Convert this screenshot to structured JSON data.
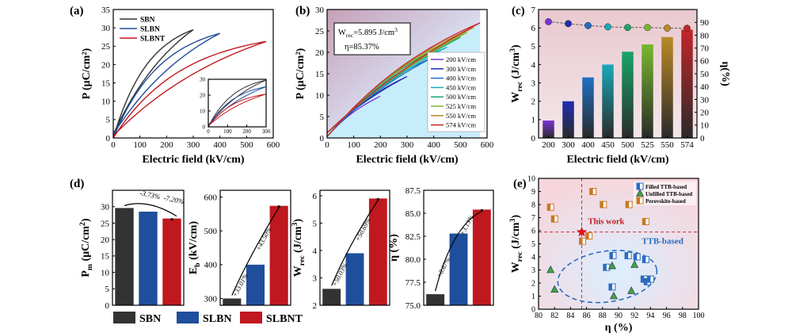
{
  "figure": {
    "legend_bottom": [
      {
        "name": "SBN",
        "color": "#333333"
      },
      {
        "name": "SLBN",
        "color": "#1f4e9c"
      },
      {
        "name": "SLBNT",
        "color": "#c0181f"
      }
    ]
  },
  "chart_data": [
    {
      "panel": "(a)",
      "type": "line",
      "xlabel": "Electric field (kV/cm)",
      "ylabel": "P (μC/cm²)",
      "xlim": [
        0,
        600
      ],
      "ylim": [
        0,
        35
      ],
      "xticks": [
        0,
        100,
        200,
        300,
        400,
        500,
        600
      ],
      "yticks": [
        0,
        5,
        10,
        15,
        20,
        25,
        30,
        35
      ],
      "series": [
        {
          "name": "SBN",
          "color": "#333333",
          "emax": 300,
          "pmax": 29.5,
          "pr": 1.0
        },
        {
          "name": "SLBN",
          "color": "#1f4e9c",
          "emax": 400,
          "pmax": 28.5,
          "pr": 1.0
        },
        {
          "name": "SLBNT",
          "color": "#c0181f",
          "emax": 574,
          "pmax": 26.3,
          "pr": 0.6
        }
      ],
      "inset": {
        "xlim": [
          0,
          300
        ],
        "ylim": [
          0,
          30
        ],
        "xticks": [
          0,
          100,
          200,
          300
        ],
        "yticks": [
          0,
          10,
          20,
          30
        ]
      }
    },
    {
      "panel": "(b)",
      "type": "line",
      "xlabel": "Electric field (kV/cm)",
      "ylabel": "P (μC/cm²)",
      "xlim": [
        0,
        600
      ],
      "ylim": [
        0,
        30
      ],
      "xticks": [
        0,
        100,
        200,
        300,
        400,
        500,
        600
      ],
      "yticks": [
        0,
        5,
        10,
        15,
        20,
        25,
        30
      ],
      "annotation": {
        "wrec": "W",
        "wrec_sub": "rec",
        "wrec_value": "=5.895 J/cm",
        "wrec_sup": "3",
        "eta": "η=85.37%"
      },
      "series": [
        {
          "name": "200 kV/cm",
          "color": "#7b35d6",
          "emax": 200
        },
        {
          "name": "300 kV/cm",
          "color": "#1e2fb0",
          "emax": 300
        },
        {
          "name": "400 kV/cm",
          "color": "#1f6fc2",
          "emax": 400
        },
        {
          "name": "450 kV/cm",
          "color": "#1aa8b8",
          "emax": 450
        },
        {
          "name": "500 kV/cm",
          "color": "#1aa56a",
          "emax": 500
        },
        {
          "name": "525 kV/cm",
          "color": "#78b82c",
          "emax": 525
        },
        {
          "name": "550 kV/cm",
          "color": "#b98a24",
          "emax": 550
        },
        {
          "name": "574 kV/cm",
          "color": "#c2262a",
          "emax": 574
        }
      ]
    },
    {
      "panel": "(c)",
      "type": "bar",
      "xlabel": "Electric field (kV/cm)",
      "ylabel": "W",
      "ylabel_sub": "rec",
      "ylabel_rest": " (J/cm",
      "ylabel_sup": "3",
      "ylabel_close": ")",
      "ylabel_right": "η(%)",
      "categories": [
        "200",
        "300",
        "400",
        "450",
        "500",
        "525",
        "550",
        "574"
      ],
      "values": [
        0.95,
        2.0,
        3.3,
        4.0,
        4.7,
        5.1,
        5.5,
        5.9
      ],
      "eta": [
        90.5,
        89.0,
        87.5,
        86.5,
        86.0,
        86.0,
        85.5,
        85.4
      ],
      "colors": [
        "#7b35d6",
        "#1e2fb0",
        "#1f6fc2",
        "#1aa8b8",
        "#1aa56a",
        "#78b82c",
        "#b98a24",
        "#c2262a"
      ],
      "ylim": [
        0,
        7
      ],
      "ylim_right": [
        0,
        100
      ],
      "yticks": [
        0,
        1,
        2,
        3,
        4,
        5,
        6,
        7
      ],
      "yticks_right": [
        0,
        10,
        20,
        30,
        40,
        50,
        60,
        70,
        80,
        90
      ]
    },
    {
      "panel": "(d)",
      "type": "bar",
      "categories": [
        "SBN",
        "SLBN",
        "SLBNT"
      ],
      "colors": [
        "#333333",
        "#1f4e9c",
        "#c0181f"
      ],
      "subplots": [
        {
          "ylabel": "P",
          "ylabel_sub": "m",
          "ylabel_rest": " (μC/cm",
          "ylabel_sup": "2",
          "ylabel_close": ")",
          "values": [
            29.6,
            28.5,
            26.4
          ],
          "ylim": [
            0,
            35
          ],
          "yticks": [
            0,
            5,
            10,
            15,
            20,
            25,
            30
          ],
          "changes": [
            "-3.73%",
            "-7.20%"
          ]
        },
        {
          "ylabel": "E",
          "ylabel_sub": "b",
          "ylabel_rest": " (kV/cm)",
          "ylabel_sup": "",
          "ylabel_close": "",
          "values": [
            300,
            400,
            574
          ],
          "ylim": [
            280,
            620
          ],
          "yticks": [
            300,
            400,
            500,
            600
          ],
          "changes": [
            "+33.01%",
            "+43.50%"
          ]
        },
        {
          "ylabel": "W",
          "ylabel_sub": "rec",
          "ylabel_rest": " (J/cm",
          "ylabel_sup": "3",
          "ylabel_close": ")",
          "values": [
            2.6,
            3.9,
            5.9
          ],
          "ylim": [
            2,
            6.2
          ],
          "yticks": [
            2,
            3,
            4,
            5,
            6
          ],
          "changes": [
            "+50.03%",
            "+50.69%"
          ]
        },
        {
          "ylabel": "η (%)",
          "ylabel_sub": "",
          "ylabel_rest": "",
          "ylabel_sup": "",
          "ylabel_close": "",
          "values": [
            76.2,
            82.8,
            85.4
          ],
          "ylim": [
            75,
            87.5
          ],
          "yticks": [
            75.0,
            77.5,
            80.0,
            82.5,
            85.0,
            87.5
          ],
          "changes": [
            "+8.67%",
            "+3.13%"
          ]
        }
      ]
    },
    {
      "panel": "(e)",
      "type": "scatter",
      "xlabel": "η (%)",
      "ylabel": "W",
      "ylabel_sub": "rec",
      "ylabel_rest": " (J/cm",
      "ylabel_sup": "3",
      "ylabel_close": ")",
      "xlim": [
        80,
        100
      ],
      "ylim": [
        0,
        10
      ],
      "xticks": [
        80,
        82,
        84,
        86,
        88,
        90,
        92,
        94,
        96,
        98,
        100
      ],
      "yticks": [
        0,
        1,
        2,
        3,
        4,
        5,
        6,
        7,
        8,
        9,
        10
      ],
      "this_work": {
        "label": "This work",
        "x": 85.4,
        "y": 5.9
      },
      "region_label": "TTB-based",
      "series": [
        {
          "name": "Filled TTB-based",
          "marker": "square-half",
          "color": "#2a6bc0",
          "points": [
            [
              88.5,
              3.2
            ],
            [
              89.2,
              1.7
            ],
            [
              89.3,
              4.1
            ],
            [
              91.2,
              4.1
            ],
            [
              92.3,
              4.0
            ],
            [
              93.2,
              2.3
            ],
            [
              93.4,
              3.8
            ],
            [
              93.6,
              2.1
            ],
            [
              94.0,
              2.3
            ]
          ]
        },
        {
          "name": "Unfilled TTB-based",
          "marker": "triangle",
          "color": "#3fa63f",
          "points": [
            [
              81.5,
              3.0
            ],
            [
              82.0,
              1.5
            ],
            [
              89.2,
              3.3
            ],
            [
              89.4,
              1.0
            ],
            [
              91.6,
              1.4
            ],
            [
              92.0,
              3.4
            ]
          ]
        },
        {
          "name": "Perovskite-based",
          "marker": "square-half",
          "color": "#c8781f",
          "points": [
            [
              81.5,
              7.8
            ],
            [
              82.0,
              6.9
            ],
            [
              85.5,
              5.2
            ],
            [
              86.3,
              5.6
            ],
            [
              86.8,
              9.0
            ],
            [
              88.1,
              8.0
            ],
            [
              91.3,
              8.0
            ],
            [
              93.4,
              6.7
            ]
          ]
        }
      ]
    }
  ]
}
